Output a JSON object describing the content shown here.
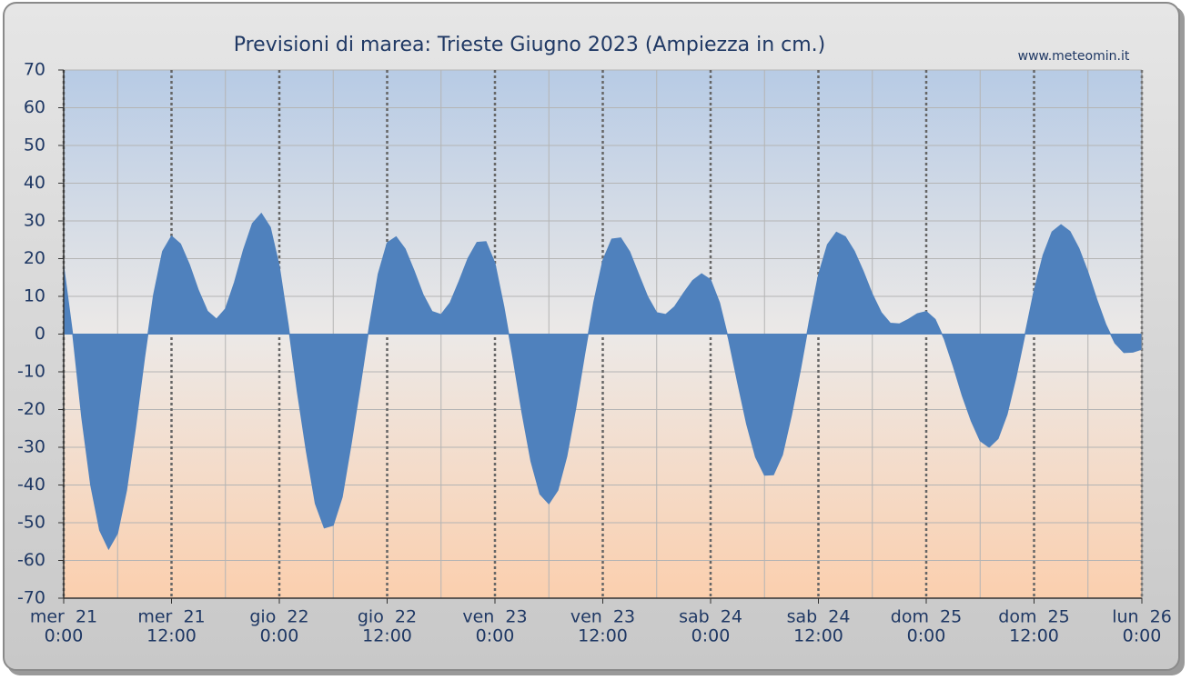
{
  "chart_data": {
    "type": "area",
    "title": "Previsioni di marea: Trieste Giugno 2023 (Ampiezza in cm.)",
    "source": "www.meteomin.it",
    "color": "#4f81bd",
    "x": [
      0,
      1,
      2,
      3,
      4,
      5,
      6,
      7,
      8,
      9,
      10,
      11,
      12,
      13,
      14,
      15,
      16,
      17,
      18,
      19,
      20,
      21,
      22,
      23,
      24,
      25,
      26,
      27,
      28,
      29,
      30,
      31,
      32,
      33,
      34,
      35,
      36,
      37,
      38,
      39,
      40,
      41,
      42,
      43,
      44,
      45,
      46,
      47,
      48,
      49,
      50,
      51,
      52,
      53,
      54,
      55,
      56,
      57,
      58,
      59,
      60,
      61,
      62,
      63,
      64,
      65,
      66,
      67,
      68,
      69,
      70,
      71,
      72,
      73,
      74,
      75,
      76,
      77,
      78,
      79,
      80,
      81,
      82,
      83,
      84,
      85,
      86,
      87,
      88,
      89,
      90,
      91,
      92,
      93,
      94,
      95,
      96,
      97,
      98,
      99,
      100,
      101,
      102,
      103,
      104,
      105,
      106,
      107,
      108,
      109,
      110,
      111,
      112,
      113,
      114,
      115,
      116,
      117,
      118,
      119,
      120
    ],
    "values": [
      18,
      0,
      -22,
      -40,
      -52,
      -57,
      -52.8,
      -41.4,
      -24.7,
      -6.3,
      10.4,
      21.9,
      26,
      23.9,
      18.4,
      11.6,
      6.1,
      4,
      6.7,
      13.7,
      22.3,
      29.3,
      32,
      28.3,
      18,
      2.3,
      -15.3,
      -31,
      -44.9,
      -51.4,
      -50.7,
      -43.2,
      -29.1,
      -13.9,
      1.9,
      15.9,
      24.2,
      25.8,
      22.6,
      16.8,
      10.5,
      6,
      5.2,
      8.3,
      14,
      20.1,
      24.3,
      24.5,
      18.8,
      7.2,
      -6.3,
      -20.8,
      -33.7,
      -42.4,
      -45,
      -41.4,
      -32.4,
      -19.6,
      -5.2,
      8.5,
      19.5,
      25.2,
      25.5,
      21.8,
      15.8,
      9.9,
      5.7,
      5.2,
      7.3,
      10.9,
      14.2,
      16,
      14.4,
      8.3,
      -1.4,
      -12.8,
      -23.8,
      -32.6,
      -37.4,
      -37.3,
      -32,
      -21.5,
      -9.5,
      3.7,
      15.7,
      23.7,
      27,
      25.8,
      22,
      16.6,
      10.6,
      5.7,
      2.9,
      2.7,
      3.9,
      5.4,
      6,
      3.9,
      -1.3,
      -8.5,
      -16.3,
      -23,
      -28.3,
      -30,
      -27.7,
      -21.3,
      -11.4,
      0,
      11.5,
      20.9,
      27.1,
      29,
      27.2,
      22.7,
      16.4,
      9.1,
      2.5,
      -2.4,
      -4.9,
      -4.8,
      -4
    ],
    "xlim": [
      0,
      120
    ],
    "xticks": [
      {
        "value": 0,
        "label": [
          "mer  21",
          "0:00"
        ]
      },
      {
        "value": 12,
        "label": [
          "mer  21",
          "12:00"
        ]
      },
      {
        "value": 24,
        "label": [
          "gio  22",
          "0:00"
        ]
      },
      {
        "value": 36,
        "label": [
          "gio  22",
          "12:00"
        ]
      },
      {
        "value": 48,
        "label": [
          "ven  23",
          "0:00"
        ]
      },
      {
        "value": 60,
        "label": [
          "ven  23",
          "12:00"
        ]
      },
      {
        "value": 72,
        "label": [
          "sab  24",
          "0:00"
        ]
      },
      {
        "value": 84,
        "label": [
          "sab  24",
          "12:00"
        ]
      },
      {
        "value": 96,
        "label": [
          "dom  25",
          "0:00"
        ]
      },
      {
        "value": 108,
        "label": [
          "dom  25",
          "12:00"
        ]
      },
      {
        "value": 120,
        "label": [
          "lun  26",
          "0:00"
        ]
      }
    ],
    "xminorticks": [
      6,
      18,
      30,
      42,
      54,
      66,
      78,
      90,
      102,
      114
    ],
    "ylim": [
      -70,
      70
    ],
    "yticks": [
      -70,
      -60,
      -50,
      -40,
      -30,
      -20,
      -10,
      0,
      10,
      20,
      30,
      40,
      50,
      60,
      70
    ],
    "grid": true
  }
}
